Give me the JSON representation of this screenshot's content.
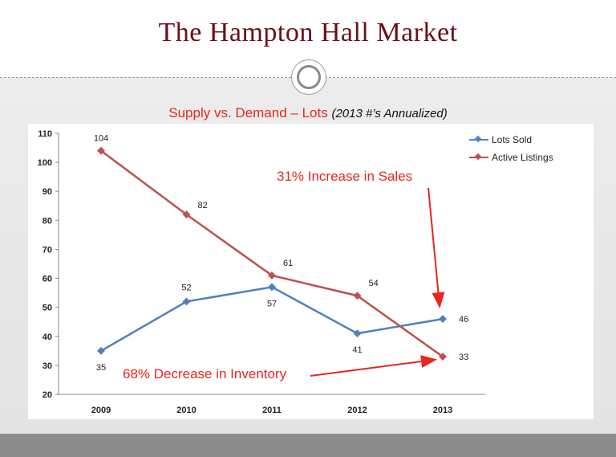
{
  "slide": {
    "title": "The Hampton Hall Market"
  },
  "chart_data": {
    "type": "line",
    "title": "Supply vs. Demand – Lots",
    "subtitle": "(2013 #’s Annualized)",
    "categories": [
      "2009",
      "2010",
      "2011",
      "2012",
      "2013"
    ],
    "series": [
      {
        "name": "Lots Sold",
        "values": [
          35,
          52,
          57,
          41,
          46
        ],
        "color": "#4f81bd"
      },
      {
        "name": "Active Listings",
        "values": [
          104,
          82,
          61,
          54,
          33
        ],
        "color": "#c0504d"
      }
    ],
    "ylim": [
      20,
      110
    ],
    "yticks": [
      20,
      30,
      40,
      50,
      60,
      70,
      80,
      90,
      100,
      110
    ],
    "grid": false,
    "legend": "right",
    "annotations": [
      "31% Increase in Sales",
      "68% Decrease in Inventory"
    ]
  }
}
